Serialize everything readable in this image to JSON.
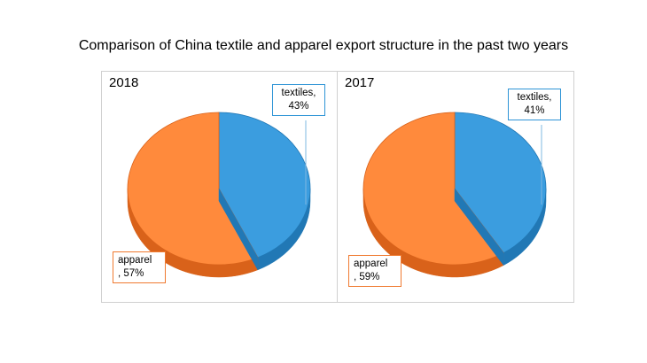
{
  "chart_data": {
    "title": "Comparison of China textile and apparel export structure in the past two years",
    "charts": [
      {
        "type": "pie",
        "panel_title": "2018",
        "slices": [
          {
            "label_line1": "textiles,",
            "label_line2": "43%",
            "value": 43,
            "color": "#3b9ddf",
            "dark": "#2178b5"
          },
          {
            "label_line1": "apparel",
            "label_line2": ", 57%",
            "value": 57,
            "color": "#ff8a3c",
            "dark": "#d9621a"
          }
        ]
      },
      {
        "type": "pie",
        "panel_title": "2017",
        "slices": [
          {
            "label_line1": "textiles,",
            "label_line2": "41%",
            "value": 41,
            "color": "#3b9ddf",
            "dark": "#2178b5"
          },
          {
            "label_line1": "apparel",
            "label_line2": ", 59%",
            "value": 59,
            "color": "#ff8a3c",
            "dark": "#d9621a"
          }
        ]
      }
    ]
  }
}
